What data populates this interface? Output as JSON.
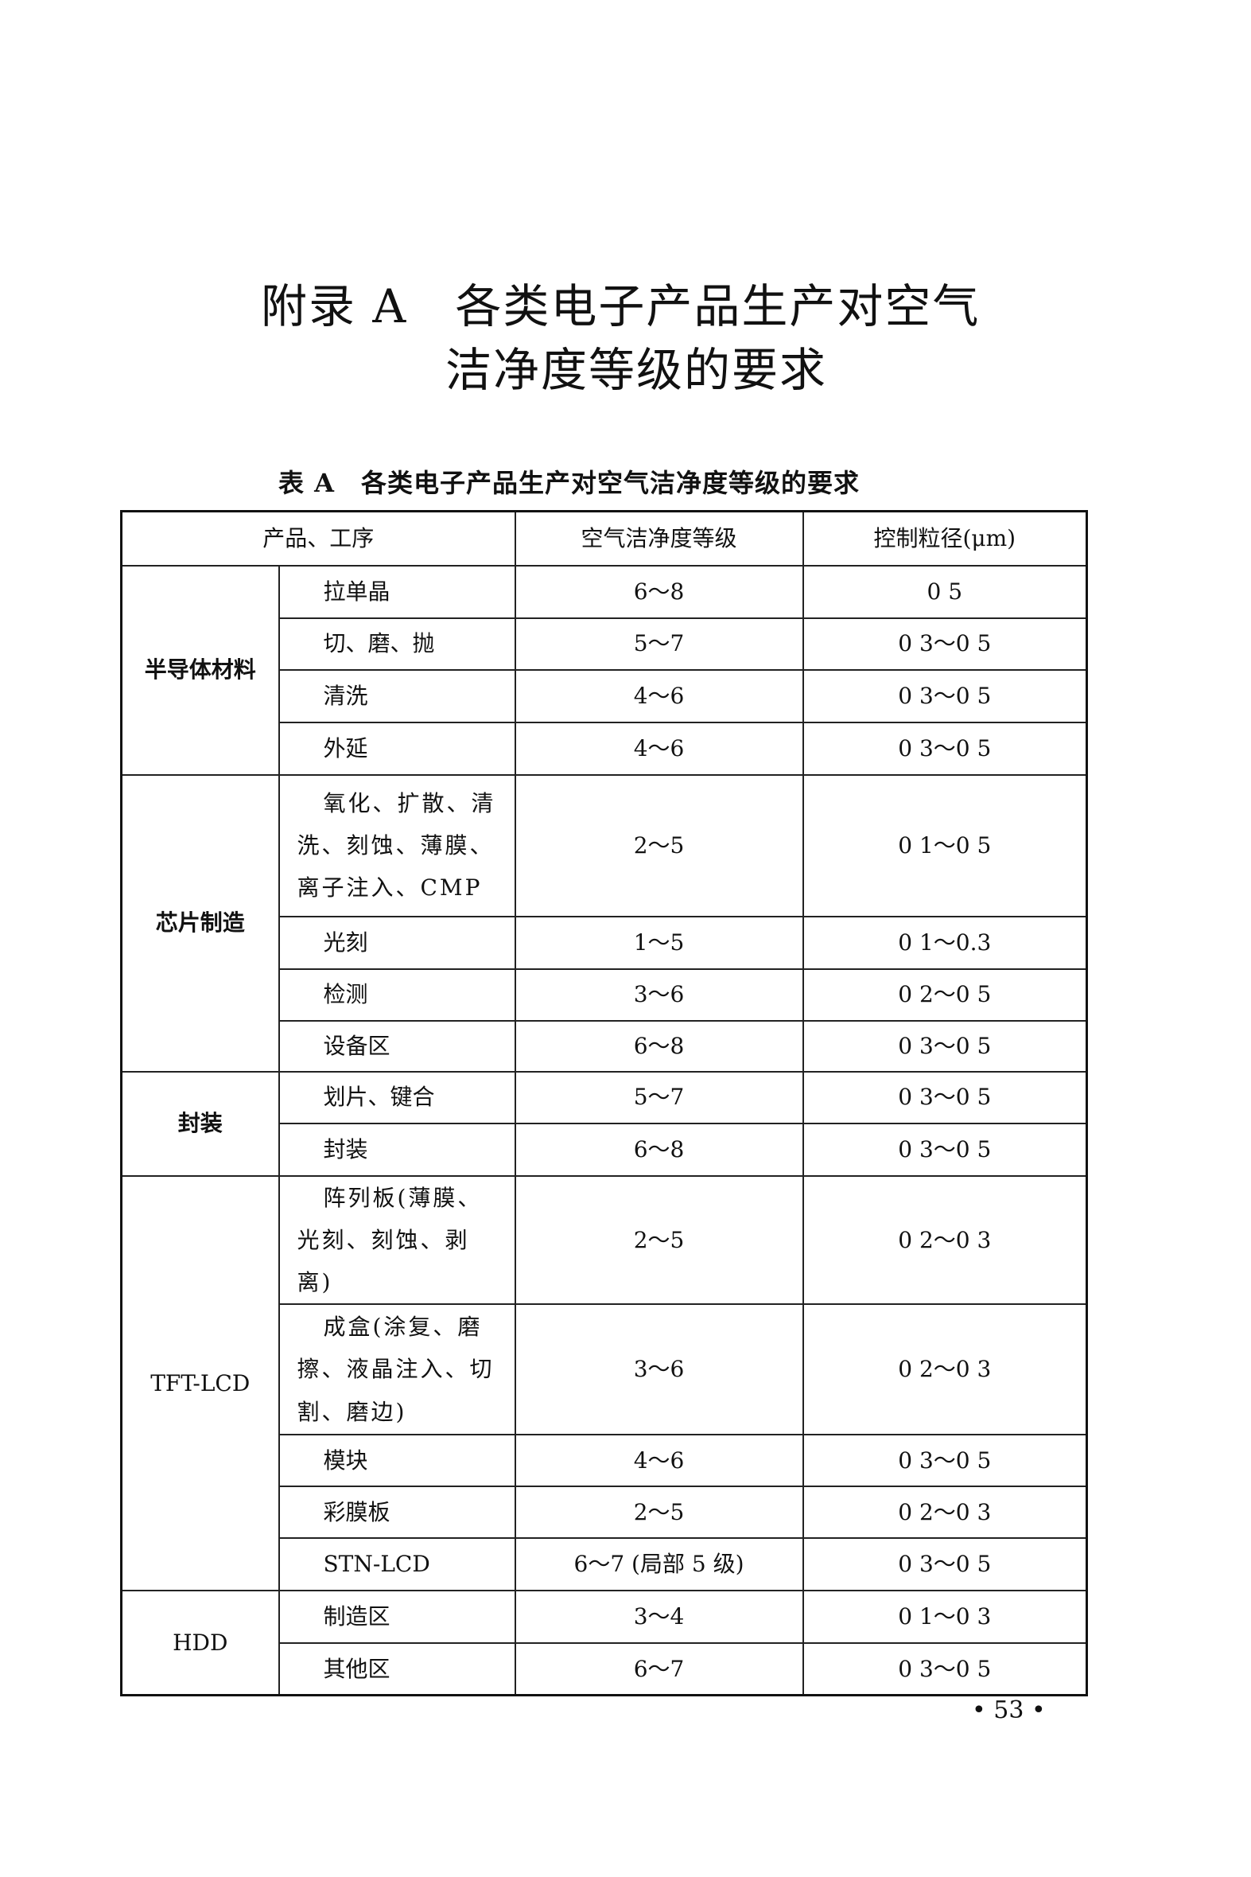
{
  "title": {
    "line1": "附录 A　各类电子产品生产对空气",
    "line2": "洁净度等级的要求"
  },
  "caption": "表 A　各类电子产品生产对空气洁净度等级的要求",
  "table": {
    "headers": [
      "产品、工序",
      "空气洁净度等级",
      "控制粒径(μm)"
    ],
    "groups": [
      {
        "name": "半导体材料",
        "rows": [
          {
            "process": "拉单晶",
            "grade": "6～8",
            "size": "0 5"
          },
          {
            "process": "切、磨、抛",
            "grade": "5～7",
            "size": "0 3～0 5"
          },
          {
            "process": "清洗",
            "grade": "4～6",
            "size": "0 3～0 5"
          },
          {
            "process": "外延",
            "grade": "4～6",
            "size": "0 3～0 5"
          }
        ]
      },
      {
        "name": "芯片制造",
        "rows": [
          {
            "process": "氧化、扩散、清洗、刻蚀、薄膜、离子注入、CMP",
            "grade": "2～5",
            "size": "0 1～0 5"
          },
          {
            "process": "光刻",
            "grade": "1～5",
            "size": "0 1～0.3"
          },
          {
            "process": "检测",
            "grade": "3～6",
            "size": "0 2～0 5"
          },
          {
            "process": "设备区",
            "grade": "6～8",
            "size": "0 3～0 5"
          }
        ]
      },
      {
        "name": "封装",
        "rows": [
          {
            "process": "划片、键合",
            "grade": "5～7",
            "size": "0 3～0 5"
          },
          {
            "process": "封装",
            "grade": "6～8",
            "size": "0 3～0 5"
          }
        ]
      },
      {
        "name": "TFT-LCD",
        "rows": [
          {
            "process": "阵列板(薄膜、光刻、刻蚀、剥离)",
            "grade": "2～5",
            "size": "0 2～0 3"
          },
          {
            "process": "成盒(涂复、磨擦、液晶注入、切割、磨边)",
            "grade": "3～6",
            "size": "0 2～0 3"
          },
          {
            "process": "模块",
            "grade": "4～6",
            "size": "0 3～0 5"
          },
          {
            "process": "彩膜板",
            "grade": "2～5",
            "size": "0 2～0 3"
          },
          {
            "process": "STN-LCD",
            "grade": "6～7 (局部 5 级)",
            "size": "0 3～0 5"
          }
        ]
      },
      {
        "name": "HDD",
        "rows": [
          {
            "process": "制造区",
            "grade": "3～4",
            "size": "0 1～0 3"
          },
          {
            "process": "其他区",
            "grade": "6～7",
            "size": "0 3～0 5"
          }
        ]
      }
    ]
  },
  "page_number": "• 53 •"
}
